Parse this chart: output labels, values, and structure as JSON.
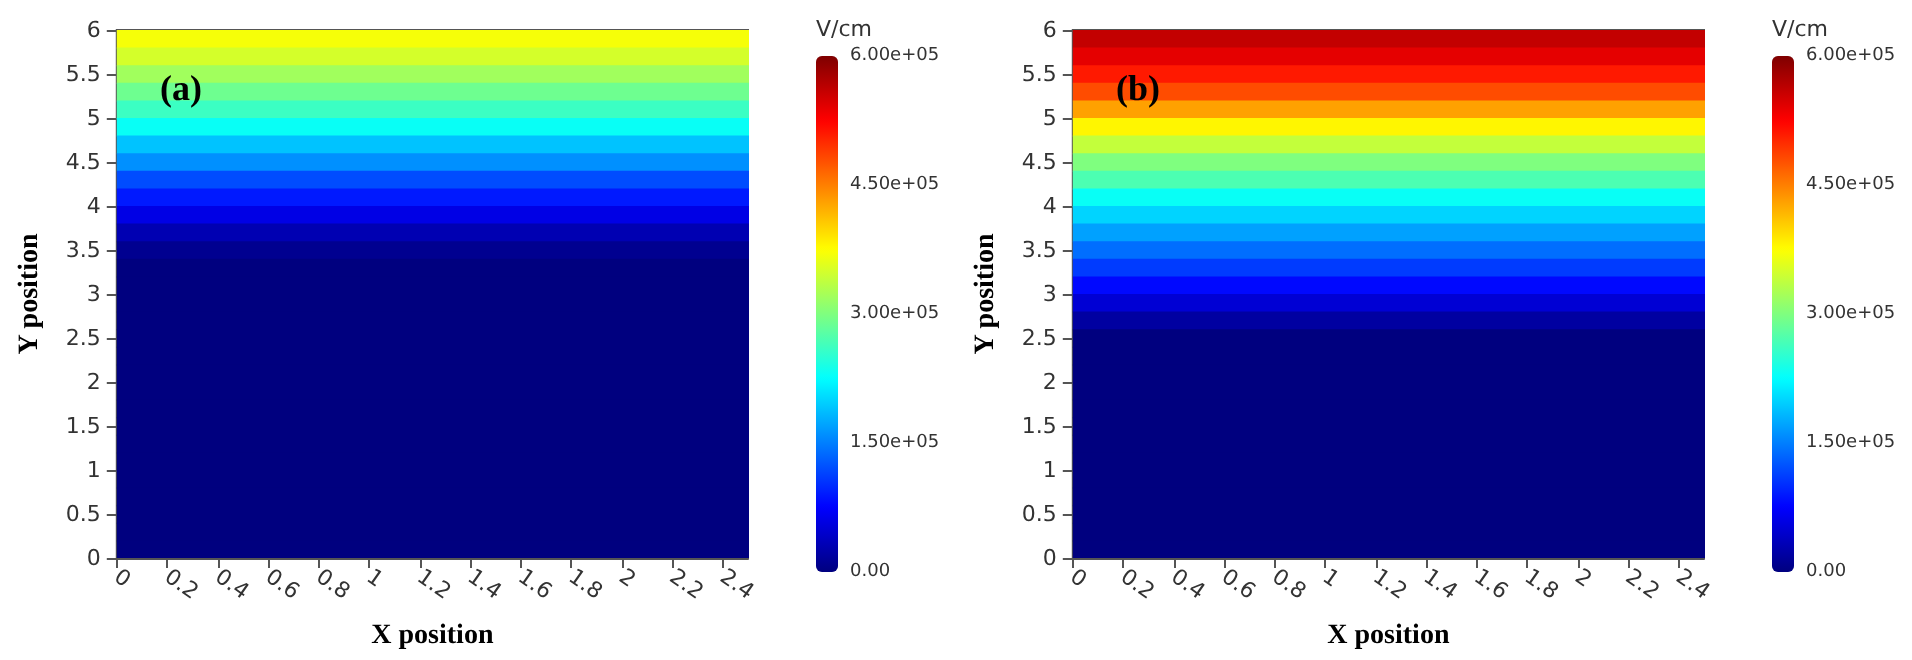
{
  "chart_data": [
    {
      "type": "heatmap",
      "annotations": [
        "(a)"
      ],
      "xlabel": "X position",
      "ylabel": "Y position",
      "clabel": "V/cm",
      "xlim": [
        0,
        2.5
      ],
      "xticks": [
        0,
        0.2,
        0.4,
        0.6,
        0.8,
        1,
        1.2,
        1.4,
        1.6,
        1.8,
        2,
        2.2,
        2.4
      ],
      "ylim": [
        0,
        6
      ],
      "yticks": [
        0,
        0.5,
        1,
        1.5,
        2,
        2.5,
        3,
        3.5,
        4,
        4.5,
        5,
        5.5,
        6
      ],
      "clim": [
        0,
        600000
      ],
      "cticks": [
        {
          "value": 0,
          "label": "0.00"
        },
        {
          "value": 150000,
          "label": "1.50e+05"
        },
        {
          "value": 300000,
          "label": "3.00e+05"
        },
        {
          "value": 450000,
          "label": "4.50e+05"
        },
        {
          "value": 600000,
          "label": "6.00e+05"
        }
      ],
      "cells": [
        [
          370000
        ],
        [
          350000
        ],
        [
          320000
        ],
        [
          290000
        ],
        [
          260000
        ],
        [
          230000
        ],
        [
          190000
        ],
        [
          160000
        ],
        [
          120000
        ],
        [
          90000
        ],
        [
          60000
        ],
        [
          30000
        ],
        [
          10000
        ],
        [
          0
        ],
        [
          0
        ],
        [
          0
        ],
        [
          0
        ],
        [
          0
        ],
        [
          0
        ],
        [
          0
        ],
        [
          0
        ],
        [
          0
        ],
        [
          0
        ],
        [
          0
        ],
        [
          0
        ],
        [
          0
        ],
        [
          0
        ],
        [
          0
        ],
        [
          0
        ],
        [
          0
        ]
      ]
    },
    {
      "type": "heatmap",
      "annotations": [
        "(b)"
      ],
      "xlabel": "X position",
      "ylabel": "Y position",
      "clabel": "V/cm",
      "xlim": [
        0,
        2.5
      ],
      "xticks": [
        0,
        0.2,
        0.4,
        0.6,
        0.8,
        1,
        1.2,
        1.4,
        1.6,
        1.8,
        2,
        2.2,
        2.4
      ],
      "ylim": [
        0,
        6
      ],
      "yticks": [
        0,
        0.5,
        1,
        1.5,
        2,
        2.5,
        3,
        3.5,
        4,
        4.5,
        5,
        5.5,
        6
      ],
      "clim": [
        0,
        600000
      ],
      "cticks": [
        {
          "value": 0,
          "label": "0.00"
        },
        {
          "value": 150000,
          "label": "1.50e+05"
        },
        {
          "value": 300000,
          "label": "3.00e+05"
        },
        {
          "value": 450000,
          "label": "4.50e+05"
        },
        {
          "value": 600000,
          "label": "6.00e+05"
        }
      ],
      "cells": [
        [
          560000
        ],
        [
          540000
        ],
        [
          510000
        ],
        [
          480000
        ],
        [
          430000
        ],
        [
          380000
        ],
        [
          340000
        ],
        [
          300000
        ],
        [
          270000
        ],
        [
          230000
        ],
        [
          200000
        ],
        [
          170000
        ],
        [
          140000
        ],
        [
          110000
        ],
        [
          80000
        ],
        [
          50000
        ],
        [
          20000
        ],
        [
          0
        ],
        [
          0
        ],
        [
          0
        ],
        [
          0
        ],
        [
          0
        ],
        [
          0
        ],
        [
          0
        ],
        [
          0
        ],
        [
          0
        ],
        [
          0
        ],
        [
          0
        ],
        [
          0
        ],
        [
          0
        ]
      ]
    }
  ]
}
